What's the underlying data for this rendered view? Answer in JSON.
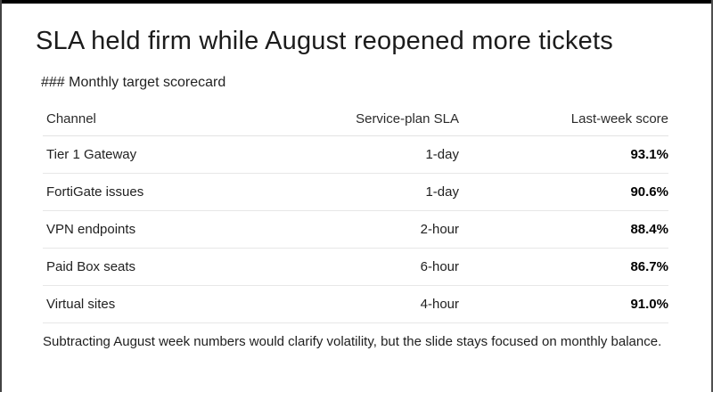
{
  "slide": {
    "title": "SLA held firm while August reopened more tickets",
    "subtitle": "### Monthly target scorecard",
    "footer": "Subtracting August week numbers would clarify volatility, but the slide stays focused on monthly balance.",
    "table": {
      "columns": [
        "Channel",
        "Service-plan SLA",
        "Last-week score"
      ],
      "rows": [
        {
          "channel": "Tier 1 Gateway",
          "sla": "1-day",
          "score": "93.1%"
        },
        {
          "channel": "FortiGate issues",
          "sla": "1-day",
          "score": "90.6%"
        },
        {
          "channel": "VPN endpoints",
          "sla": "2-hour",
          "score": "88.4%"
        },
        {
          "channel": "Paid Box seats",
          "sla": "6-hour",
          "score": "86.7%"
        },
        {
          "channel": "Virtual sites",
          "sla": "4-hour",
          "score": "91.0%"
        }
      ]
    },
    "colors": {
      "top_bar": "#000000",
      "frame_border_left": "#434343",
      "frame_border_right": "#4f4f4f",
      "separator": "#e7e7e7",
      "title_text": "#1c1c1c",
      "body_text": "#212121",
      "score_text": "#000000"
    }
  }
}
